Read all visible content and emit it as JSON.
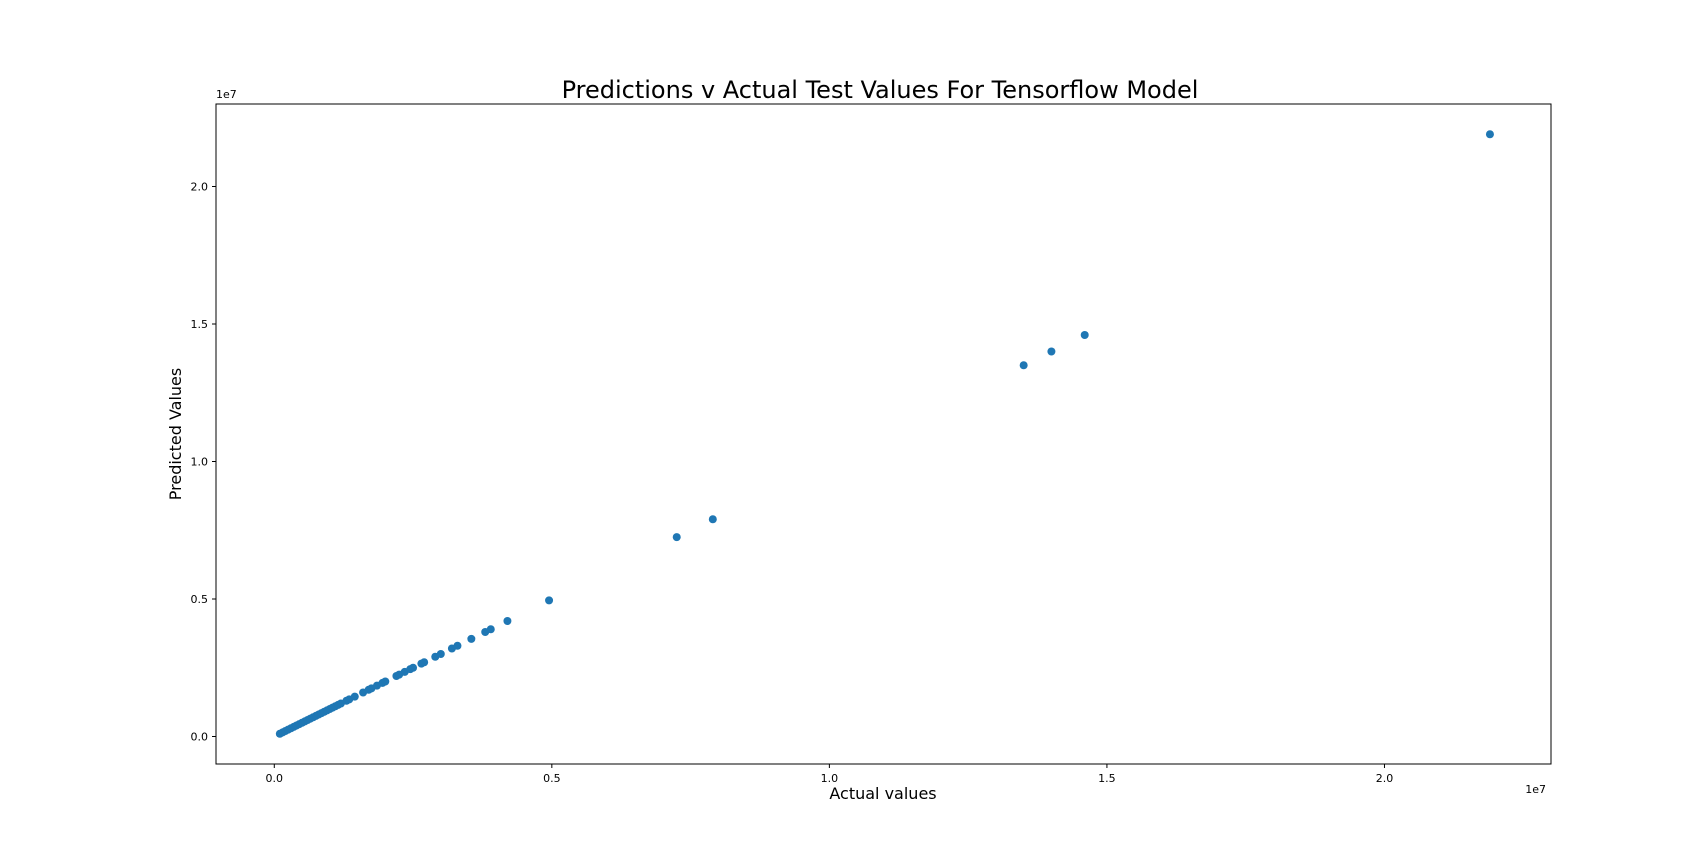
{
  "chart_data": {
    "type": "scatter",
    "title": "Predictions v Actual Test Values For Tensorflow Model",
    "xlabel": "Actual values",
    "ylabel": "Predicted Values",
    "x_offset_label": "1e7",
    "y_offset_label": "1e7",
    "xlim": [
      -1050000,
      23000000
    ],
    "ylim": [
      -1000000,
      23000000
    ],
    "x_ticks": [
      0,
      5000000,
      10000000,
      15000000,
      20000000
    ],
    "x_tick_labels": [
      "0.0",
      "0.5",
      "1.0",
      "1.5",
      "2.0"
    ],
    "y_ticks": [
      0,
      5000000,
      10000000,
      15000000,
      20000000
    ],
    "y_tick_labels": [
      "0.0",
      "0.5",
      "1.0",
      "1.5",
      "2.0"
    ],
    "grid": false,
    "marker_color": "#1f77b4",
    "series": [
      {
        "points": [
          [
            100000,
            100000
          ],
          [
            150000,
            150000
          ],
          [
            200000,
            200000
          ],
          [
            250000,
            250000
          ],
          [
            300000,
            300000
          ],
          [
            350000,
            350000
          ],
          [
            400000,
            400000
          ],
          [
            450000,
            450000
          ],
          [
            500000,
            500000
          ],
          [
            550000,
            550000
          ],
          [
            600000,
            600000
          ],
          [
            650000,
            650000
          ],
          [
            700000,
            700000
          ],
          [
            750000,
            750000
          ],
          [
            800000,
            800000
          ],
          [
            850000,
            850000
          ],
          [
            900000,
            900000
          ],
          [
            950000,
            950000
          ],
          [
            1000000,
            1000000
          ],
          [
            1050000,
            1050000
          ],
          [
            1100000,
            1100000
          ],
          [
            1150000,
            1150000
          ],
          [
            1200000,
            1200000
          ],
          [
            1300000,
            1300000
          ],
          [
            1350000,
            1350000
          ],
          [
            1450000,
            1450000
          ],
          [
            1600000,
            1600000
          ],
          [
            1700000,
            1700000
          ],
          [
            1750000,
            1750000
          ],
          [
            1850000,
            1850000
          ],
          [
            1950000,
            1950000
          ],
          [
            2000000,
            2000000
          ],
          [
            2200000,
            2200000
          ],
          [
            2250000,
            2250000
          ],
          [
            2350000,
            2350000
          ],
          [
            2450000,
            2450000
          ],
          [
            2500000,
            2500000
          ],
          [
            2650000,
            2650000
          ],
          [
            2700000,
            2700000
          ],
          [
            2900000,
            2900000
          ],
          [
            3000000,
            3000000
          ],
          [
            3200000,
            3200000
          ],
          [
            3300000,
            3300000
          ],
          [
            3550000,
            3550000
          ],
          [
            3800000,
            3800000
          ],
          [
            3900000,
            3900000
          ],
          [
            4200000,
            4200000
          ],
          [
            4950000,
            4950000
          ],
          [
            7250000,
            7250000
          ],
          [
            7900000,
            7900000
          ],
          [
            13500000,
            13500000
          ],
          [
            14000000,
            14000000
          ],
          [
            14600000,
            14600000
          ],
          [
            21900000,
            21900000
          ]
        ]
      }
    ]
  }
}
